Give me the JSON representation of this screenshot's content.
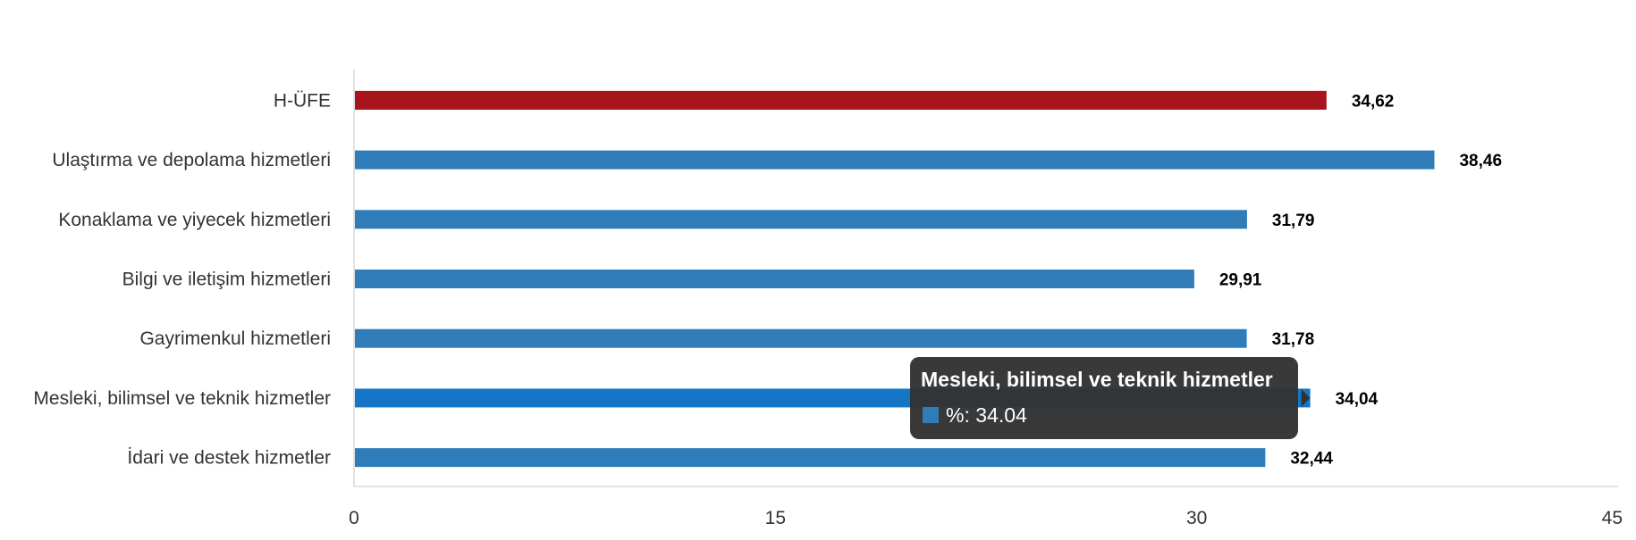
{
  "chart_data": {
    "type": "bar",
    "orientation": "horizontal",
    "categories": [
      "H-ÜFE",
      "Ulaştırma ve depolama hizmetleri",
      "Konaklama ve yiyecek hizmetleri",
      "Bilgi ve iletişim hizmetleri",
      "Gayrimenkul hizmetleri",
      "Mesleki, bilimsel ve teknik hizmetler",
      "İdari ve destek hizmetler"
    ],
    "values": [
      34.62,
      38.46,
      31.79,
      29.91,
      31.78,
      34.04,
      32.44
    ],
    "data_labels": [
      "34,62",
      "38,46",
      "31,79",
      "29,91",
      "31,78",
      "34,04",
      "32,44"
    ],
    "bar_colors": [
      "#a8141c",
      "#2f7cb8",
      "#2f7cb8",
      "#2f7cb8",
      "#2f7cb8",
      "#1576c8",
      "#2f7cb8"
    ],
    "xlim": [
      0,
      45
    ],
    "xticks": [
      0,
      15,
      30,
      45
    ],
    "grid": false,
    "title": "",
    "xlabel": "",
    "ylabel": "",
    "tooltip": {
      "category_index": 5,
      "title": "Mesleki, bilimsel ve teknik hizmetler",
      "value_text": "%: 34.04",
      "marker_color": "#2f7cb8",
      "background": "#333333"
    }
  }
}
